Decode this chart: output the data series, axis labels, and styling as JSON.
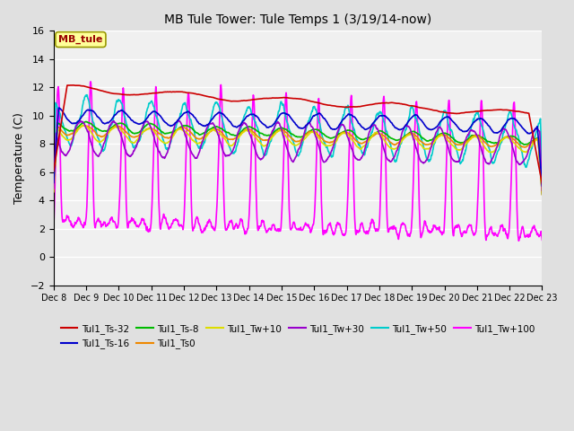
{
  "title": "MB Tule Tower: Tule Temps 1 (3/19/14-now)",
  "ylabel": "Temperature (C)",
  "xlim": [
    0,
    15
  ],
  "ylim": [
    -2,
    16
  ],
  "yticks": [
    -2,
    0,
    2,
    4,
    6,
    8,
    10,
    12,
    14,
    16
  ],
  "xtick_labels": [
    "Dec 8",
    "Dec 9",
    "Dec 10",
    "Dec 11",
    "Dec 12",
    "Dec 13",
    "Dec 14",
    "Dec 15",
    "Dec 16",
    "Dec 17",
    "Dec 18",
    "Dec 19",
    "Dec 20",
    "Dec 21",
    "Dec 22",
    "Dec 23"
  ],
  "annotation_text": "MB_tule",
  "bg_color": "#e0e0e0",
  "plot_bg_color": "#f0f0f0",
  "grid_color": "#ffffff",
  "series": {
    "Tul1_Ts-32": {
      "color": "#cc0000",
      "lw": 1.2
    },
    "Tul1_Ts-16": {
      "color": "#0000cc",
      "lw": 1.2
    },
    "Tul1_Ts-8": {
      "color": "#00bb00",
      "lw": 1.2
    },
    "Tul1_Ts0": {
      "color": "#ee8800",
      "lw": 1.2
    },
    "Tul1_Tw+10": {
      "color": "#dddd00",
      "lw": 1.2
    },
    "Tul1_Tw+30": {
      "color": "#9900cc",
      "lw": 1.2
    },
    "Tul1_Tw+50": {
      "color": "#00cccc",
      "lw": 1.2
    },
    "Tul1_Tw+100": {
      "color": "#ff00ff",
      "lw": 1.2
    }
  }
}
